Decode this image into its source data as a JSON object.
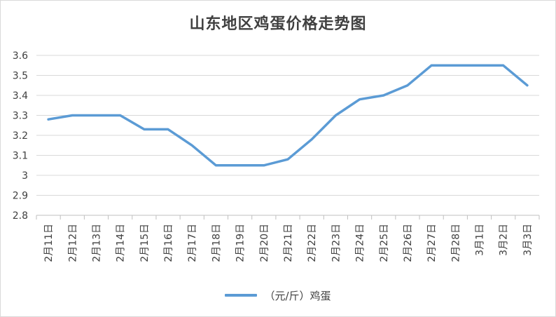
{
  "chart_data": {
    "type": "line",
    "title": "山东地区鸡蛋价格走势图",
    "categories": [
      "2月11日",
      "2月12日",
      "2月13日",
      "2月14日",
      "2月15日",
      "2月16日",
      "2月17日",
      "2月18日",
      "2月19日",
      "2月20日",
      "2月21日",
      "2月22日",
      "2月23日",
      "2月24日",
      "2月25日",
      "2月26日",
      "2月27日",
      "2月28日",
      "3月1日",
      "3月2日",
      "3月3日"
    ],
    "series": [
      {
        "name": "（元/斤）鸡蛋",
        "values": [
          3.28,
          3.3,
          3.3,
          3.3,
          3.23,
          3.23,
          3.15,
          3.05,
          3.05,
          3.05,
          3.08,
          3.18,
          3.3,
          3.38,
          3.4,
          3.45,
          3.55,
          3.55,
          3.55,
          3.55,
          3.45
        ]
      }
    ],
    "ylim": [
      2.8,
      3.6
    ],
    "yticks": [
      "2.8",
      "2.9",
      "3",
      "3.1",
      "3.2",
      "3.3",
      "3.4",
      "3.5",
      "3.6"
    ],
    "grid": true,
    "legend_position": "bottom",
    "line_color": "#5b9bd5"
  }
}
